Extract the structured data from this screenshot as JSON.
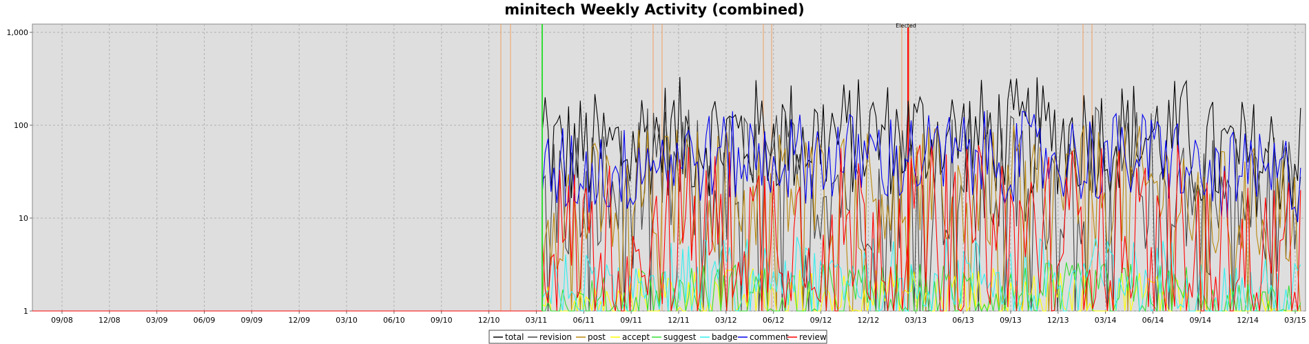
{
  "chart_data": {
    "type": "line",
    "title": "minitech Weekly Activity (combined)",
    "xlabel": "",
    "ylabel": "",
    "y_scale": "log",
    "ylim": [
      1,
      1000
    ],
    "y_ticks": [
      "1",
      "10",
      "100",
      "1,000"
    ],
    "x_ticks": [
      "09/08",
      "12/08",
      "03/09",
      "06/09",
      "09/09",
      "12/09",
      "03/10",
      "06/10",
      "09/10",
      "12/10",
      "03/11",
      "06/11",
      "09/11",
      "12/11",
      "03/12",
      "06/12",
      "09/12",
      "12/12",
      "03/13",
      "06/13",
      "09/13",
      "12/13",
      "03/14",
      "06/14",
      "09/14",
      "12/14",
      "03/15"
    ],
    "grid": true,
    "legend_position": "bottom",
    "background": "#dedede",
    "annotation": "Elected",
    "series": [
      {
        "name": "total",
        "color": "#000000",
        "level": 75,
        "spread": 0.65
      },
      {
        "name": "revision",
        "color": "#444444",
        "level": 25,
        "spread": 0.8
      },
      {
        "name": "post",
        "color": "#b8860b",
        "level": 20,
        "spread": 0.7
      },
      {
        "name": "accept",
        "color": "#ffff00",
        "level": 1.5,
        "spread": 0.3
      },
      {
        "name": "suggest",
        "color": "#33dd33",
        "level": 1.5,
        "spread": 0.35
      },
      {
        "name": "badge",
        "color": "#33eeee",
        "level": 2.5,
        "spread": 0.4
      },
      {
        "name": "comment",
        "color": "#0000ee",
        "level": 45,
        "spread": 0.5
      },
      {
        "name": "review",
        "color": "#ff0000",
        "level": 8,
        "spread": 0.9
      }
    ]
  }
}
